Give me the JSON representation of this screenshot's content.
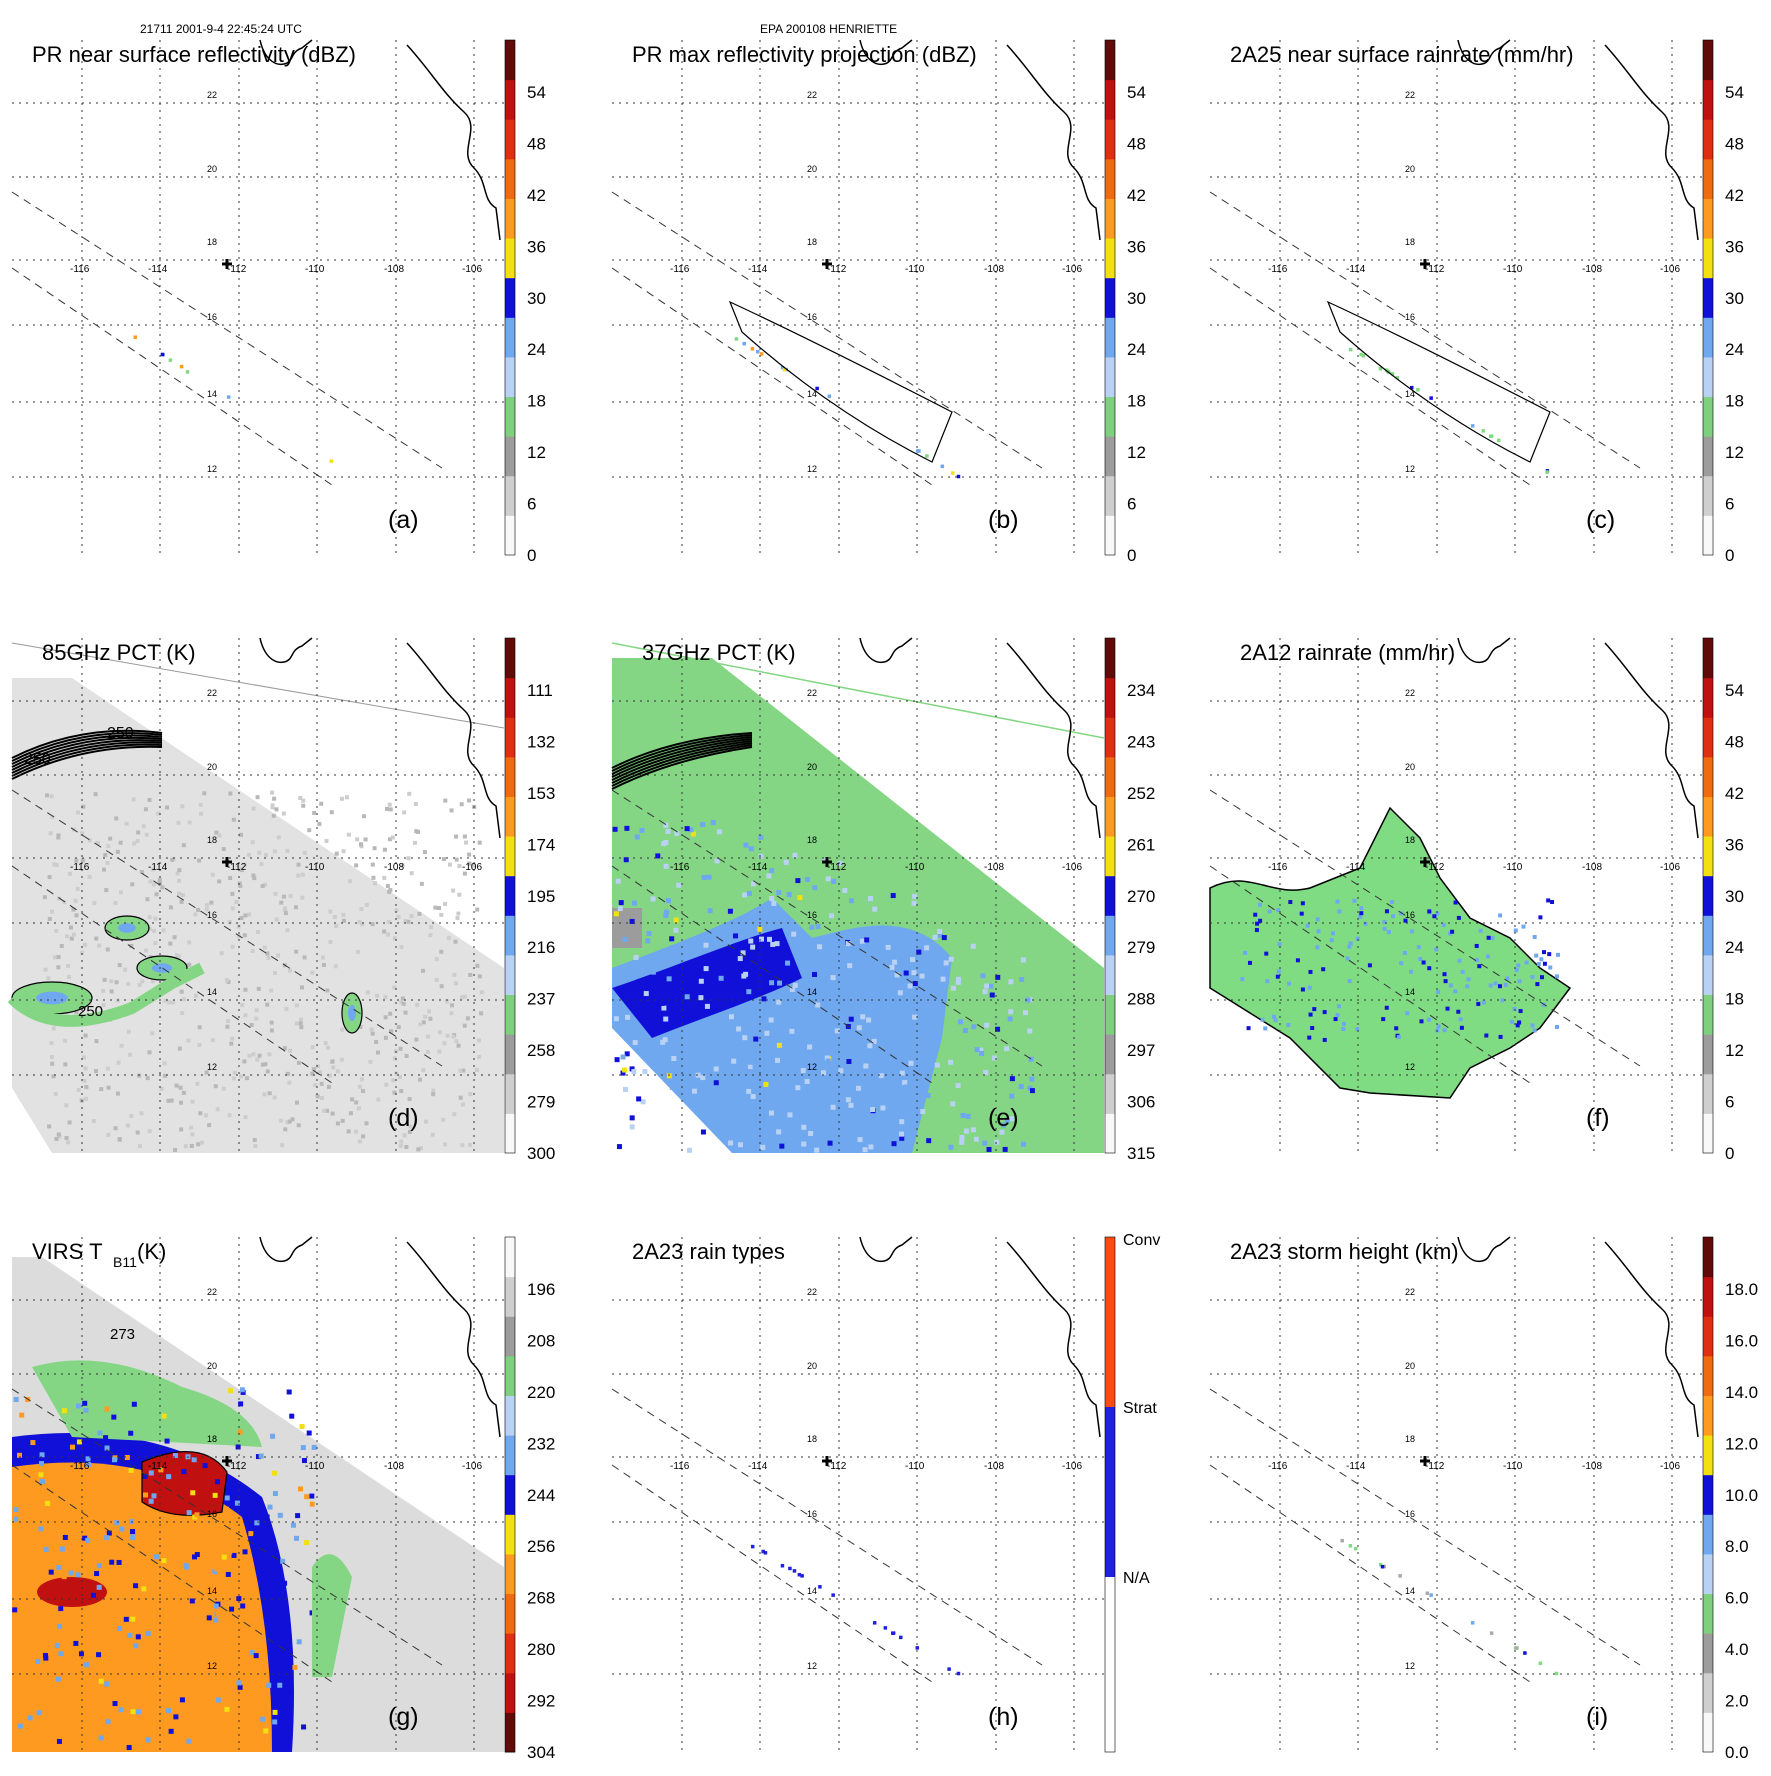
{
  "header": {
    "left": "21711 2001-9-4 22:45:24 UTC",
    "center": "EPA 200108 HENRIETTE"
  },
  "grid": {
    "lon_labels": [
      "-116",
      "-114",
      "-112",
      "-110",
      "-108",
      "-106"
    ],
    "lat_labels": [
      "22",
      "20",
      "18",
      "16",
      "14",
      "12"
    ]
  },
  "colors": {
    "green": "#84d684",
    "rain_green": "#7fdc83",
    "blue": "#1b1bd8",
    "light_blue": "#7fb0ee",
    "orange": "#f59a23",
    "red": "#c81a1a",
    "yellow": "#f5e60a",
    "gray": "#a9a9a9"
  },
  "chart_data": [
    {
      "type": "heatmap",
      "panel": "(a)",
      "title": "PR near surface reflectivity (dBZ)",
      "colorbar_ticks": [
        "54",
        "48",
        "42",
        "36",
        "30",
        "24",
        "18",
        "12",
        "6",
        "0"
      ],
      "colorbar_range": [
        0,
        60
      ]
    },
    {
      "type": "heatmap",
      "panel": "(b)",
      "title": "PR max reflectivity projection (dBZ)",
      "colorbar_ticks": [
        "54",
        "48",
        "42",
        "36",
        "30",
        "24",
        "18",
        "12",
        "6",
        "0"
      ],
      "colorbar_range": [
        0,
        60
      ]
    },
    {
      "type": "heatmap",
      "panel": "(c)",
      "title": "2A25 near surface rainrate (mm/hr)",
      "colorbar_ticks": [
        "54",
        "48",
        "42",
        "36",
        "30",
        "24",
        "18",
        "12",
        "6",
        "0"
      ],
      "colorbar_range": [
        0,
        60
      ]
    },
    {
      "type": "heatmap",
      "panel": "(d)",
      "title": "85GHz PCT (K)",
      "colorbar_ticks": [
        "111",
        "132",
        "153",
        "174",
        "195",
        "216",
        "237",
        "258",
        "279",
        "300"
      ],
      "colorbar_range": [
        90,
        300
      ],
      "contour_labels": [
        "250",
        "250",
        "250"
      ]
    },
    {
      "type": "heatmap",
      "panel": "(e)",
      "title": "37GHz PCT (K)",
      "colorbar_ticks": [
        "234",
        "243",
        "252",
        "261",
        "270",
        "279",
        "288",
        "297",
        "306",
        "315"
      ],
      "colorbar_range": [
        225,
        315
      ]
    },
    {
      "type": "heatmap",
      "panel": "(f)",
      "title": "2A12 rainrate (mm/hr)",
      "colorbar_ticks": [
        "54",
        "48",
        "42",
        "36",
        "30",
        "24",
        "18",
        "12",
        "6",
        "0"
      ],
      "colorbar_range": [
        0,
        60
      ]
    },
    {
      "type": "heatmap",
      "panel": "(g)",
      "title_main": "VIRS T",
      "title_sub": "B11",
      "title_unit": " (K)",
      "colorbar_ticks": [
        "196",
        "208",
        "220",
        "232",
        "244",
        "256",
        "268",
        "280",
        "292",
        "304"
      ],
      "colorbar_range": [
        184,
        304
      ],
      "contour_labels": [
        "273"
      ]
    },
    {
      "type": "heatmap",
      "panel": "(h)",
      "title": "2A23 rain types",
      "categories": [
        "Conv",
        "Strat",
        "N/A"
      ]
    },
    {
      "type": "heatmap",
      "panel": "(i)",
      "title": "2A23 storm height (km)",
      "colorbar_ticks": [
        "18.0",
        "16.0",
        "14.0",
        "12.0",
        "10.0",
        "8.0",
        "6.0",
        "4.0",
        "2.0",
        "0.0"
      ],
      "colorbar_range": [
        0,
        20
      ]
    }
  ]
}
